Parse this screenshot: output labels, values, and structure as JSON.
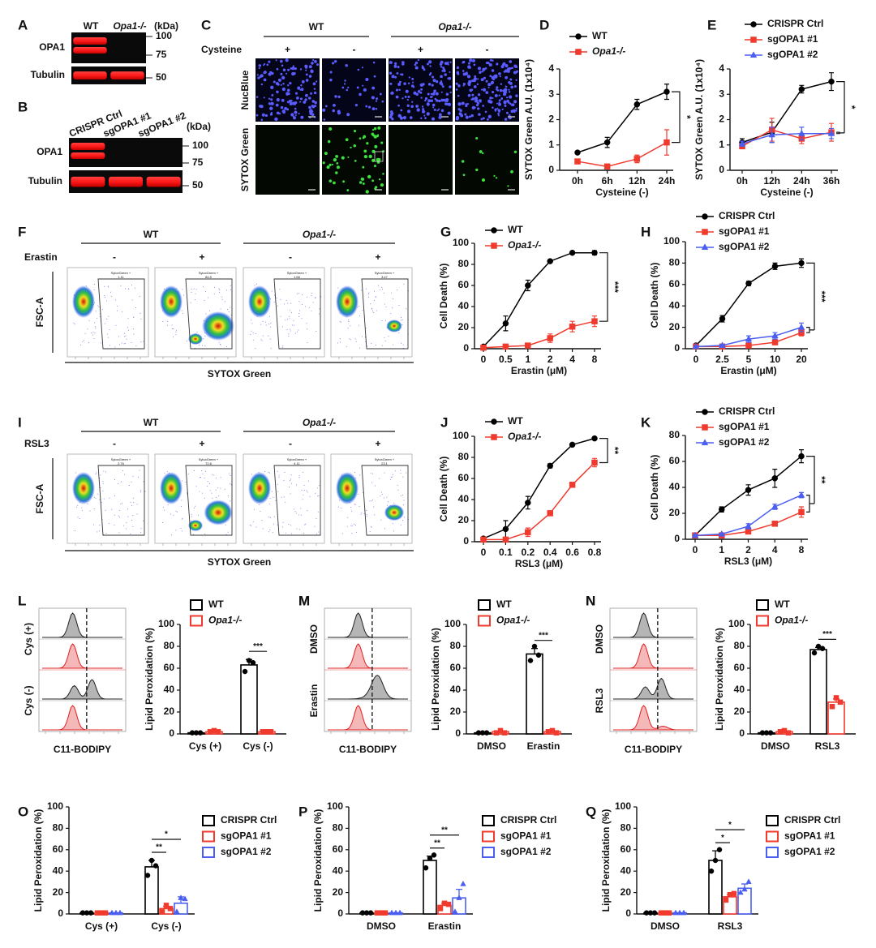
{
  "blots": [
    {
      "panel": "A",
      "lanes": [
        "WT",
        "Opa1-/-"
      ],
      "unit": "(kDa)",
      "rows": [
        "OPA1",
        "Tubulin"
      ],
      "markers": [
        "100",
        "75",
        "50"
      ]
    },
    {
      "panel": "B",
      "lanes": [
        "CRISPR Ctrl",
        "sgOPA1 #1",
        "sgOPA1 #2"
      ],
      "unit": "(kDa)",
      "rows": [
        "OPA1",
        "Tubulin"
      ],
      "markers": [
        "100",
        "75",
        "50"
      ]
    }
  ],
  "microscopy": {
    "panel": "C",
    "groups": [
      "WT",
      "Opa1-/-"
    ],
    "condition": "Cysteine",
    "treatments": [
      "+",
      "-",
      "+",
      "-"
    ],
    "channels": [
      "NucBlue",
      "SYTOX Green"
    ]
  },
  "flow": [
    {
      "panel": "F",
      "groups": [
        "WT",
        "Opa1-/-"
      ],
      "condition": "Erastin",
      "treatments": [
        "-",
        "+",
        "-",
        "+"
      ],
      "y_label": "FSC-A",
      "x_label": "SYTOX Green",
      "gate_name": "SytoxGreen +",
      "gate_values": [
        "1.11",
        "84.5",
        "1.66",
        "3.47"
      ]
    },
    {
      "panel": "I",
      "groups": [
        "WT",
        "Opa1-/-"
      ],
      "condition": "RSL3",
      "treatments": [
        "-",
        "+",
        "-",
        "+"
      ],
      "y_label": "FSC-A",
      "x_label": "SYTOX Green",
      "gate_name": "SytoxGreen +",
      "gate_values": [
        "2.76",
        "72.6",
        "4.11",
        "23.1"
      ]
    }
  ],
  "histograms": [
    {
      "panel": "L",
      "rows": [
        "Cys (+)",
        "Cys (-)"
      ],
      "x_label": "C11-BODIPY"
    },
    {
      "panel": "M",
      "rows": [
        "DMSO",
        "Erastin"
      ],
      "x_label": "C11-BODIPY"
    },
    {
      "panel": "N",
      "rows": [
        "DMSO",
        "RSL3"
      ],
      "x_label": "C11-BODIPY"
    }
  ],
  "chart_data": [
    {
      "panel": "D",
      "type": "line",
      "x_label": "Cysteine (-)",
      "y_label": "SYTOX Green A.U. (1x10⁴)",
      "categories": [
        "0h",
        "6h",
        "12h",
        "24h"
      ],
      "ylim": [
        0,
        4
      ],
      "yticks": [
        0,
        1,
        2,
        3,
        4
      ],
      "significance": "*",
      "series": [
        {
          "name": "WT",
          "color": "#000000",
          "marker": "circle",
          "values": [
            0.7,
            1.1,
            2.6,
            3.1
          ],
          "errors": [
            0.05,
            0.2,
            0.2,
            0.3
          ]
        },
        {
          "name": "Opa1-/-",
          "color": "#f03a2e",
          "marker": "square",
          "values": [
            0.35,
            0.15,
            0.45,
            1.1
          ],
          "errors": [
            0.05,
            0.05,
            0.15,
            0.5
          ]
        }
      ]
    },
    {
      "panel": "E",
      "type": "line",
      "x_label": "Cysteine (-)",
      "y_label": "SYTOX Green A.U. (1x10⁴)",
      "categories": [
        "0h",
        "12h",
        "24h",
        "36h"
      ],
      "ylim": [
        0,
        4
      ],
      "yticks": [
        0,
        1,
        2,
        3,
        4
      ],
      "significance": "*",
      "series": [
        {
          "name": "CRISPR Ctrl",
          "color": "#000000",
          "marker": "circle",
          "values": [
            1.1,
            1.5,
            3.2,
            3.5
          ],
          "errors": [
            0.15,
            0.4,
            0.15,
            0.35
          ]
        },
        {
          "name": "sgOPA1 #1",
          "color": "#f03a2e",
          "marker": "square",
          "values": [
            0.95,
            1.6,
            1.25,
            1.5
          ],
          "errors": [
            0.1,
            0.45,
            0.2,
            0.35
          ]
        },
        {
          "name": "sgOPA1 #2",
          "color": "#4a5ff0",
          "marker": "triangle",
          "values": [
            1.05,
            1.4,
            1.45,
            1.45
          ],
          "errors": [
            0.1,
            0.3,
            0.25,
            0.2
          ]
        }
      ]
    },
    {
      "panel": "G",
      "type": "line",
      "x_label": "Erastin (μM)",
      "y_label": "Cell Death (%)",
      "categories": [
        "0",
        "0.5",
        "1",
        "2",
        "4",
        "8"
      ],
      "ylim": [
        0,
        100
      ],
      "yticks": [
        0,
        20,
        40,
        60,
        80,
        100
      ],
      "significance": "***",
      "series": [
        {
          "name": "WT",
          "color": "#000000",
          "marker": "circle",
          "values": [
            2,
            24,
            60,
            83,
            91,
            91
          ],
          "errors": [
            1,
            7,
            5,
            1,
            1,
            2
          ]
        },
        {
          "name": "Opa1-/-",
          "color": "#f03a2e",
          "marker": "square",
          "values": [
            1,
            2,
            3,
            10,
            21,
            26
          ],
          "errors": [
            0.5,
            0.5,
            1,
            4,
            5,
            5
          ]
        }
      ]
    },
    {
      "panel": "H",
      "type": "line",
      "x_label": "Erastin (μM)",
      "y_label": "Cell Death (%)",
      "categories": [
        "0",
        "2.5",
        "5",
        "10",
        "20"
      ],
      "ylim": [
        0,
        100
      ],
      "yticks": [
        0,
        20,
        40,
        60,
        80,
        100
      ],
      "significance": "***",
      "series": [
        {
          "name": "CRISPR Ctrl",
          "color": "#000000",
          "marker": "circle",
          "values": [
            3,
            28,
            61,
            77,
            80
          ],
          "errors": [
            1,
            3,
            2,
            3,
            4
          ]
        },
        {
          "name": "sgOPA1 #1",
          "color": "#f03a2e",
          "marker": "square",
          "values": [
            2,
            2,
            3,
            6,
            15
          ],
          "errors": [
            0.5,
            0.5,
            1,
            2,
            3
          ]
        },
        {
          "name": "sgOPA1 #2",
          "color": "#4a5ff0",
          "marker": "triangle",
          "values": [
            2,
            3,
            9,
            12,
            20
          ],
          "errors": [
            0.5,
            1,
            3,
            3,
            4
          ]
        }
      ]
    },
    {
      "panel": "J",
      "type": "line",
      "x_label": "RSL3 (μM)",
      "y_label": "Cell Death (%)",
      "categories": [
        "0",
        "0.1",
        "0.2",
        "0.4",
        "0.6",
        "0.8"
      ],
      "ylim": [
        0,
        100
      ],
      "yticks": [
        0,
        20,
        40,
        60,
        80,
        100
      ],
      "significance": "**",
      "series": [
        {
          "name": "WT",
          "color": "#000000",
          "marker": "circle",
          "values": [
            3,
            12,
            37,
            72,
            92,
            98
          ],
          "errors": [
            1,
            8,
            6,
            2,
            1,
            1
          ]
        },
        {
          "name": "Opa1-/-",
          "color": "#f03a2e",
          "marker": "square",
          "values": [
            2,
            2,
            9,
            27,
            54,
            75
          ],
          "errors": [
            0.5,
            1,
            4,
            2,
            2,
            4
          ]
        }
      ]
    },
    {
      "panel": "K",
      "type": "line",
      "x_label": "RSL3 (μM)",
      "y_label": "Cell Death (%)",
      "categories": [
        "0",
        "1",
        "2",
        "4",
        "8"
      ],
      "ylim": [
        0,
        80
      ],
      "yticks": [
        0,
        20,
        40,
        60,
        80
      ],
      "significance": "**",
      "series": [
        {
          "name": "CRISPR Ctrl",
          "color": "#000000",
          "marker": "circle",
          "values": [
            3,
            23,
            38,
            47,
            64
          ],
          "errors": [
            1,
            2,
            4,
            7,
            5
          ]
        },
        {
          "name": "sgOPA1 #1",
          "color": "#f03a2e",
          "marker": "square",
          "values": [
            3,
            3,
            6,
            12,
            21
          ],
          "errors": [
            0.5,
            0.5,
            1,
            1,
            4
          ]
        },
        {
          "name": "sgOPA1 #2",
          "color": "#4a5ff0",
          "marker": "triangle",
          "values": [
            3,
            4,
            10,
            25,
            34
          ],
          "errors": [
            0.5,
            0.5,
            2,
            2,
            2
          ]
        }
      ]
    },
    {
      "panel": "L",
      "type": "bar",
      "y_label": "Lipid Peroxidation (%)",
      "categories": [
        "Cys (+)",
        "Cys (-)"
      ],
      "ylim": [
        0,
        100
      ],
      "yticks": [
        0,
        20,
        40,
        60,
        80,
        100
      ],
      "significance": [
        "***"
      ],
      "series": [
        {
          "name": "WT",
          "color": "#000000",
          "marker": "circle",
          "values": [
            1,
            63
          ],
          "errors": [
            0,
            5
          ],
          "points": [
            [
              1,
              1,
              1
            ],
            [
              57,
              67,
              65
            ]
          ]
        },
        {
          "name": "Opa1-/-",
          "color": "#f03a2e",
          "marker": "square",
          "values": [
            2,
            2
          ],
          "errors": [
            0.5,
            0.5
          ],
          "points": [
            [
              2,
              3,
              2
            ],
            [
              2,
              2,
              2
            ]
          ]
        }
      ]
    },
    {
      "panel": "M",
      "type": "bar",
      "y_label": "Lipid Peroxidation (%)",
      "categories": [
        "DMSO",
        "Erastin"
      ],
      "ylim": [
        0,
        100
      ],
      "yticks": [
        0,
        20,
        40,
        60,
        80,
        100
      ],
      "significance": [
        "***"
      ],
      "series": [
        {
          "name": "WT",
          "color": "#000000",
          "marker": "circle",
          "values": [
            1,
            73
          ],
          "errors": [
            0,
            5
          ],
          "points": [
            [
              1,
              1,
              1
            ],
            [
              67,
              80,
              72
            ]
          ]
        },
        {
          "name": "Opa1-/-",
          "color": "#f03a2e",
          "marker": "square",
          "values": [
            2,
            2
          ],
          "errors": [
            0.5,
            0.5
          ],
          "points": [
            [
              1,
              3,
              1
            ],
            [
              2,
              3,
              1
            ]
          ]
        }
      ]
    },
    {
      "panel": "N",
      "type": "bar",
      "y_label": "Lipid Peroxidation (%)",
      "categories": [
        "DMSO",
        "RSL3"
      ],
      "ylim": [
        0,
        100
      ],
      "yticks": [
        0,
        20,
        40,
        60,
        80,
        100
      ],
      "significance": [
        "***"
      ],
      "series": [
        {
          "name": "WT",
          "color": "#000000",
          "marker": "circle",
          "values": [
            1,
            77
          ],
          "errors": [
            0,
            2
          ],
          "points": [
            [
              1,
              1,
              1
            ],
            [
              74,
              80,
              78
            ]
          ]
        },
        {
          "name": "Opa1-/-",
          "color": "#f03a2e",
          "marker": "square",
          "values": [
            2,
            29
          ],
          "errors": [
            0.5,
            3
          ],
          "points": [
            [
              2,
              3,
              1
            ],
            [
              25,
              33,
              29
            ]
          ]
        }
      ]
    },
    {
      "panel": "O",
      "type": "bar",
      "y_label": "Lipid Peroxidation (%)",
      "categories": [
        "Cys (+)",
        "Cys (-)"
      ],
      "ylim": [
        0,
        100
      ],
      "yticks": [
        0,
        20,
        40,
        60,
        80,
        100
      ],
      "significance": [
        "**",
        "*"
      ],
      "series": [
        {
          "name": "CRISPR Ctrl",
          "color": "#000000",
          "marker": "circle",
          "values": [
            1,
            44
          ],
          "errors": [
            0,
            6
          ],
          "points": [
            [
              1,
              1,
              1
            ],
            [
              36,
              50,
              45
            ]
          ]
        },
        {
          "name": "sgOPA1 #1",
          "color": "#f03a2e",
          "marker": "square",
          "values": [
            1,
            5
          ],
          "errors": [
            0,
            2
          ],
          "points": [
            [
              1,
              1,
              1
            ],
            [
              2,
              8,
              5
            ]
          ]
        },
        {
          "name": "sgOPA1 #2",
          "color": "#4a5ff0",
          "marker": "triangle",
          "values": [
            1,
            10
          ],
          "errors": [
            0,
            6
          ],
          "points": [
            [
              1,
              1,
              1
            ],
            [
              2,
              15,
              14
            ]
          ]
        }
      ]
    },
    {
      "panel": "P",
      "type": "bar",
      "y_label": "Lipid Peroxidation (%)",
      "categories": [
        "DMSO",
        "Erastin"
      ],
      "ylim": [
        0,
        100
      ],
      "yticks": [
        0,
        20,
        40,
        60,
        80,
        100
      ],
      "significance": [
        "**",
        "**"
      ],
      "series": [
        {
          "name": "CRISPR Ctrl",
          "color": "#000000",
          "marker": "circle",
          "values": [
            1,
            50
          ],
          "errors": [
            0,
            4
          ],
          "points": [
            [
              1,
              1,
              1
            ],
            [
              43,
              52,
              55
            ]
          ]
        },
        {
          "name": "sgOPA1 #1",
          "color": "#f03a2e",
          "marker": "square",
          "values": [
            1,
            8
          ],
          "errors": [
            0,
            2
          ],
          "points": [
            [
              1,
              1,
              1
            ],
            [
              5,
              10,
              9
            ]
          ]
        },
        {
          "name": "sgOPA1 #2",
          "color": "#4a5ff0",
          "marker": "triangle",
          "values": [
            1,
            15
          ],
          "errors": [
            0,
            8
          ],
          "points": [
            [
              1,
              1,
              1
            ],
            [
              2,
              15,
              28
            ]
          ]
        }
      ]
    },
    {
      "panel": "Q",
      "type": "bar",
      "y_label": "Lipid Peroxidation (%)",
      "categories": [
        "DMSO",
        "RSL3"
      ],
      "ylim": [
        0,
        100
      ],
      "yticks": [
        0,
        20,
        40,
        60,
        80,
        100
      ],
      "significance": [
        "*",
        "*"
      ],
      "series": [
        {
          "name": "CRISPR Ctrl",
          "color": "#000000",
          "marker": "circle",
          "values": [
            1,
            50
          ],
          "errors": [
            0,
            9
          ],
          "points": [
            [
              1,
              1,
              1
            ],
            [
              40,
              50,
              60
            ]
          ]
        },
        {
          "name": "sgOPA1 #1",
          "color": "#f03a2e",
          "marker": "square",
          "values": [
            1,
            16
          ],
          "errors": [
            0,
            2
          ],
          "points": [
            [
              1,
              1,
              1
            ],
            [
              13,
              18,
              19
            ]
          ]
        },
        {
          "name": "sgOPA1 #2",
          "color": "#4a5ff0",
          "marker": "triangle",
          "values": [
            1,
            24
          ],
          "errors": [
            0,
            4
          ],
          "points": [
            [
              1,
              1,
              1
            ],
            [
              20,
              23,
              30
            ]
          ]
        }
      ]
    }
  ]
}
